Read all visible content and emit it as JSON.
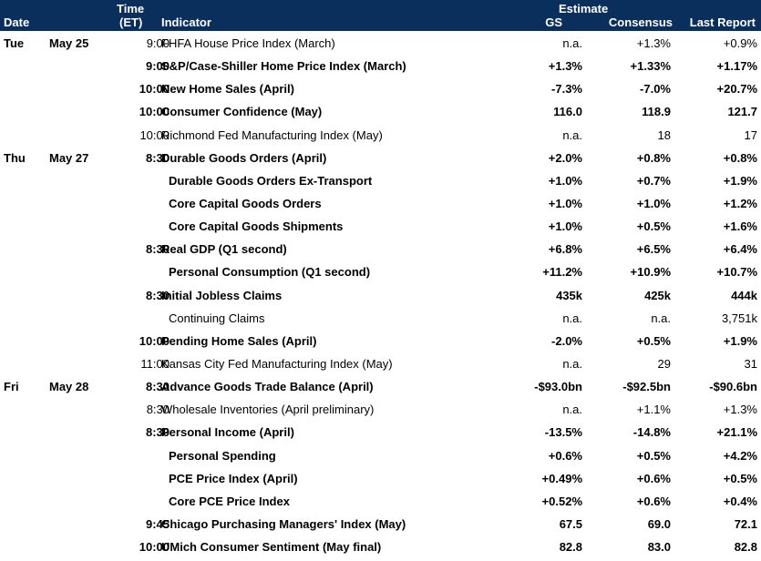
{
  "header": {
    "date": "Date",
    "time_line1": "Time",
    "time_line2": "(ET)",
    "indicator": "Indicator",
    "estimate": "Estimate",
    "gs": "GS",
    "consensus": "Consensus",
    "last_report": "Last Report"
  },
  "rows": [
    {
      "day": "Tue",
      "date": "May 25",
      "time": "9:00",
      "indicator": "FHFA House Price Index (March)",
      "gs": "n.a.",
      "consensus": "+1.3%",
      "last": "+0.9%"
    },
    {
      "day": "",
      "date": "",
      "time": "9:00",
      "indicator": "S&P/Case-Shiller Home Price Index (March)",
      "gs": "+1.3%",
      "consensus": "+1.33%",
      "last": "+1.17%"
    },
    {
      "day": "",
      "date": "",
      "time": "10:00",
      "indicator": "New Home Sales (April)",
      "gs": "-7.3%",
      "consensus": "-7.0%",
      "last": "+20.7%"
    },
    {
      "day": "",
      "date": "",
      "time": "10:00",
      "indicator": "Consumer Confidence (May)",
      "gs": "116.0",
      "consensus": "118.9",
      "last": "121.7"
    },
    {
      "day": "",
      "date": "",
      "time": "10:00",
      "indicator": "Richmond Fed Manufacturing Index (May)",
      "gs": "n.a.",
      "consensus": "18",
      "last": "17"
    },
    {
      "day": "Thu",
      "date": "May 27",
      "time": "8:30",
      "indicator": "Durable Goods Orders (April)",
      "gs": "+2.0%",
      "consensus": "+0.8%",
      "last": "+0.8%"
    },
    {
      "day": "",
      "date": "",
      "time": "",
      "indicator": "Durable Goods Orders Ex-Transport",
      "gs": "+1.0%",
      "consensus": "+0.7%",
      "last": "+1.9%"
    },
    {
      "day": "",
      "date": "",
      "time": "",
      "indicator": "Core Capital Goods Orders",
      "gs": "+1.0%",
      "consensus": "+1.0%",
      "last": "+1.2%"
    },
    {
      "day": "",
      "date": "",
      "time": "",
      "indicator": "Core Capital Goods Shipments",
      "gs": "+1.0%",
      "consensus": "+0.5%",
      "last": "+1.6%"
    },
    {
      "day": "",
      "date": "",
      "time": "8:30",
      "indicator": "Real GDP (Q1 second)",
      "gs": "+6.8%",
      "consensus": "+6.5%",
      "last": "+6.4%"
    },
    {
      "day": "",
      "date": "",
      "time": "",
      "indicator": "Personal Consumption (Q1 second)",
      "gs": "+11.2%",
      "consensus": "+10.9%",
      "last": "+10.7%"
    },
    {
      "day": "",
      "date": "",
      "time": "8:30",
      "indicator": "Initial Jobless Claims",
      "gs": "435k",
      "consensus": "425k",
      "last": "444k"
    },
    {
      "day": "",
      "date": "",
      "time": "",
      "indicator": "Continuing Claims",
      "gs": "n.a.",
      "consensus": "n.a.",
      "last": "3,751k"
    },
    {
      "day": "",
      "date": "",
      "time": "10:00",
      "indicator": "Pending Home Sales (April)",
      "gs": "-2.0%",
      "consensus": "+0.5%",
      "last": "+1.9%"
    },
    {
      "day": "",
      "date": "",
      "time": "11:00",
      "indicator": "Kansas City Fed Manufacturing Index (May)",
      "gs": "n.a.",
      "consensus": "29",
      "last": "31"
    },
    {
      "day": "Fri",
      "date": "May 28",
      "time": "8:30",
      "indicator": "Advance Goods Trade Balance (April)",
      "gs": "-$93.0bn",
      "consensus": "-$92.5bn",
      "last": "-$90.6bn"
    },
    {
      "day": "",
      "date": "",
      "time": "8:30",
      "indicator": "Wholesale Inventories (April preliminary)",
      "gs": "n.a.",
      "consensus": "+1.1%",
      "last": "+1.3%"
    },
    {
      "day": "",
      "date": "",
      "time": "8:30",
      "indicator": "Personal Income (April)",
      "gs": "-13.5%",
      "consensus": "-14.8%",
      "last": "+21.1%"
    },
    {
      "day": "",
      "date": "",
      "time": "",
      "indicator": "Personal Spending",
      "gs": "+0.6%",
      "consensus": "+0.5%",
      "last": "+4.2%"
    },
    {
      "day": "",
      "date": "",
      "time": "",
      "indicator": "PCE Price Index (April)",
      "gs": "+0.49%",
      "consensus": "+0.6%",
      "last": "+0.5%"
    },
    {
      "day": "",
      "date": "",
      "time": "",
      "indicator": "Core PCE Price Index",
      "gs": "+0.52%",
      "consensus": "+0.6%",
      "last": "+0.4%"
    },
    {
      "day": "",
      "date": "",
      "time": "9:45",
      "indicator": "Chicago Purchasing Managers' Index (May)",
      "gs": "67.5",
      "consensus": "69.0",
      "last": "72.1"
    },
    {
      "day": "",
      "date": "",
      "time": "10:00",
      "indicator": "UMich Consumer Sentiment (May final)",
      "gs": "82.8",
      "consensus": "83.0",
      "last": "82.8"
    }
  ]
}
